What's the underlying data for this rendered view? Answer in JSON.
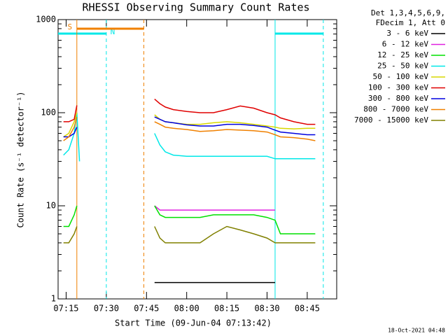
{
  "chart_data": {
    "type": "line",
    "title": "RHESSI Observing Summary Count Rates",
    "y_label": "Count Rate (s⁻¹ detector⁻¹)",
    "x_label": "Start Time (09-Jun-04 07:13:42)",
    "legend_header": [
      "Det 1,3,4,5,6,9,",
      "FDecim 1, Att 0"
    ],
    "footer": "18-Oct-2021 04:48",
    "log_scale": true,
    "xlim": [
      "07:12",
      "08:56"
    ],
    "xticks": [
      "07:15",
      "07:30",
      "07:45",
      "08:00",
      "08:15",
      "08:30",
      "08:45"
    ],
    "ylim": [
      1,
      1000
    ],
    "yticks": [
      1,
      10,
      100,
      1000
    ],
    "x": [
      "07:14",
      "07:16",
      "07:18",
      "07:19",
      "07:20",
      "07:21",
      "07:35",
      "07:48",
      "07:50",
      "07:52",
      "07:55",
      "08:00",
      "08:05",
      "08:10",
      "08:15",
      "08:20",
      "08:25",
      "08:30",
      "08:33",
      "08:35",
      "08:40",
      "08:45",
      "08:48"
    ],
    "series": [
      {
        "name": "3 - 6 keV",
        "color": "#000000",
        "values": [
          null,
          null,
          null,
          null,
          null,
          null,
          null,
          1.5,
          1.5,
          1.5,
          1.5,
          1.5,
          1.5,
          1.5,
          1.5,
          1.5,
          1.5,
          1.5,
          1.5,
          null,
          null,
          null,
          null
        ]
      },
      {
        "name": "6 - 12 keV",
        "color": "#e020e0",
        "values": [
          null,
          null,
          null,
          null,
          null,
          null,
          null,
          10,
          9,
          9,
          9,
          9,
          9,
          9,
          9,
          9,
          9,
          9,
          9,
          null,
          null,
          null,
          null
        ]
      },
      {
        "name": "12 - 25 keV",
        "color": "#00e000",
        "values": [
          6,
          6,
          8,
          10,
          null,
          null,
          null,
          10,
          8,
          7.5,
          7.5,
          7.5,
          7.5,
          8,
          8,
          8,
          8,
          7.5,
          7,
          5,
          5,
          5,
          5
        ]
      },
      {
        "name": "25 - 50 keV",
        "color": "#00e8e8",
        "values": [
          35,
          40,
          60,
          100,
          30,
          null,
          null,
          60,
          45,
          38,
          35,
          34,
          34,
          34,
          34,
          34,
          34,
          34,
          32,
          32,
          32,
          32,
          32
        ]
      },
      {
        "name": "50 - 100 keV",
        "color": "#d8d800",
        "values": [
          55,
          60,
          80,
          100,
          null,
          null,
          null,
          95,
          85,
          80,
          78,
          75,
          75,
          78,
          80,
          78,
          75,
          72,
          70,
          68,
          67,
          68,
          68
        ]
      },
      {
        "name": "100 - 300 keV",
        "color": "#e00000",
        "values": [
          80,
          80,
          85,
          120,
          null,
          null,
          null,
          140,
          125,
          115,
          108,
          103,
          100,
          100,
          108,
          118,
          112,
          100,
          95,
          88,
          80,
          75,
          75
        ]
      },
      {
        "name": "300 - 800 keV",
        "color": "#0000e0",
        "values": [
          55,
          55,
          60,
          70,
          null,
          null,
          null,
          90,
          85,
          80,
          78,
          74,
          72,
          72,
          75,
          75,
          73,
          70,
          65,
          62,
          60,
          58,
          58
        ]
      },
      {
        "name": "800 - 7000 keV",
        "color": "#f08000",
        "values": [
          50,
          55,
          70,
          90,
          null,
          null,
          null,
          80,
          75,
          70,
          68,
          66,
          63,
          64,
          66,
          65,
          64,
          62,
          58,
          55,
          54,
          52,
          50
        ]
      },
      {
        "name": "7000 - 15000 keV",
        "color": "#808000",
        "values": [
          4,
          4,
          5,
          6,
          null,
          null,
          null,
          6,
          4.5,
          4,
          4,
          4,
          4,
          5,
          6,
          5.5,
          5,
          4.5,
          4,
          4,
          4,
          4,
          4
        ]
      }
    ],
    "intervals": [
      {
        "label": "N",
        "color": "#00e8e8",
        "start": "07:12",
        "end": "07:30"
      },
      {
        "label": "S",
        "color": "#f08000",
        "start": "07:19",
        "end": "07:44"
      },
      {
        "color": "#00e8e8",
        "start": "08:33",
        "end": "08:51"
      }
    ]
  }
}
